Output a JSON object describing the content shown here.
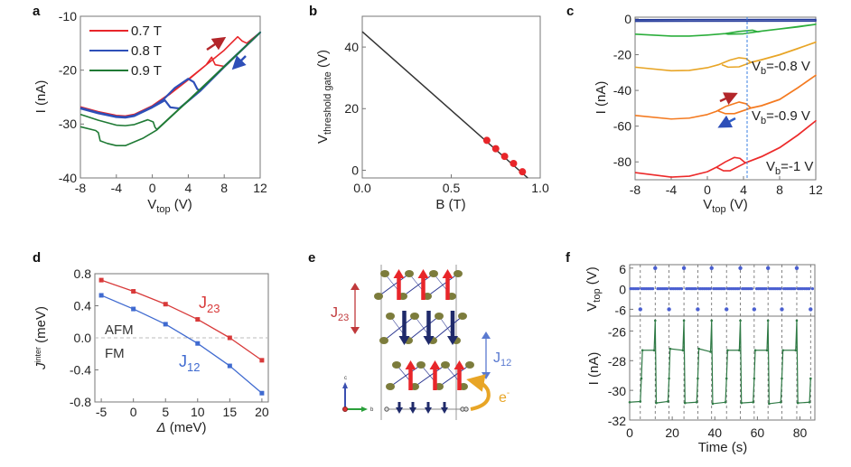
{
  "panel_labels": [
    "a",
    "b",
    "c",
    "d",
    "e",
    "f"
  ],
  "chart_data": [
    {
      "panel": "a",
      "type": "line",
      "xlabel": {
        "main": "V",
        "sub": "top",
        "unit": " (V)"
      },
      "ylabel": "I (nA)",
      "xlim": [
        -8,
        12
      ],
      "ylim": [
        -40,
        -10
      ],
      "xticks": [
        -8,
        -4,
        0,
        4,
        8,
        12
      ],
      "yticks": [
        -40,
        -30,
        -20,
        -10
      ],
      "legend_position": "top-left",
      "series": [
        {
          "name": "0.7 T",
          "color": "#e8262a",
          "points": [
            [
              -8,
              -26.8
            ],
            [
              -6,
              -27.7
            ],
            [
              -4,
              -28.4
            ],
            [
              -3,
              -28.5
            ],
            [
              -2,
              -28.2
            ],
            [
              0,
              -26.6
            ],
            [
              2,
              -24.3
            ],
            [
              4,
              -21.7
            ],
            [
              6,
              -19
            ],
            [
              8,
              -16.3
            ],
            [
              9.5,
              -13.8
            ],
            [
              10,
              -14.6
            ],
            [
              10.5,
              -15
            ],
            [
              12,
              -13
            ],
            [
              10,
              -16.2
            ],
            [
              8,
              -19.3
            ],
            [
              7,
              -19
            ],
            [
              6.6,
              -17.6
            ],
            [
              6,
              -19
            ],
            [
              4,
              -21.8
            ],
            [
              2,
              -24.4
            ],
            [
              0,
              -26.7
            ],
            [
              -2,
              -28.3
            ],
            [
              -3,
              -28.6
            ],
            [
              -4,
              -28.5
            ],
            [
              -6,
              -27.8
            ],
            [
              -8,
              -26.9
            ]
          ]
        },
        {
          "name": "0.8 T",
          "color": "#2e4fb8",
          "points": [
            [
              -8,
              -27
            ],
            [
              -6,
              -27.9
            ],
            [
              -4,
              -28.6
            ],
            [
              -3,
              -28.7
            ],
            [
              -2,
              -28.4
            ],
            [
              0,
              -26.8
            ],
            [
              1.2,
              -25.5
            ],
            [
              2.5,
              -23.3
            ],
            [
              4,
              -21.6
            ],
            [
              4.6,
              -22.2
            ],
            [
              5,
              -23.5
            ],
            [
              5.3,
              -23.8
            ],
            [
              8,
              -19.3
            ],
            [
              12,
              -13
            ],
            [
              8,
              -19.4
            ],
            [
              5.3,
              -23.9
            ],
            [
              3,
              -27.1
            ],
            [
              2,
              -26.9
            ],
            [
              1.4,
              -25.6
            ],
            [
              0,
              -26.9
            ],
            [
              -2,
              -28.5
            ],
            [
              -3,
              -28.8
            ],
            [
              -4,
              -28.7
            ],
            [
              -6,
              -28
            ],
            [
              -8,
              -27.1
            ]
          ]
        },
        {
          "name": "0.9 T",
          "color": "#1f7a35",
          "points": [
            [
              -8,
              -28.2
            ],
            [
              -6,
              -29.3
            ],
            [
              -4,
              -30.2
            ],
            [
              -3,
              -30.3
            ],
            [
              -2,
              -30.1
            ],
            [
              -0.5,
              -29.2
            ],
            [
              0.1,
              -29.6
            ],
            [
              0.3,
              -30.6
            ],
            [
              0.5,
              -31
            ],
            [
              4,
              -25.6
            ],
            [
              8,
              -19.3
            ],
            [
              12,
              -13
            ],
            [
              8,
              -19.4
            ],
            [
              4,
              -25.7
            ],
            [
              0.5,
              -31.1
            ],
            [
              -1,
              -32.6
            ],
            [
              -3,
              -34
            ],
            [
              -4,
              -34
            ],
            [
              -5,
              -33.6
            ],
            [
              -5.8,
              -33.1
            ],
            [
              -6,
              -31.6
            ],
            [
              -6.3,
              -31.2
            ],
            [
              -8,
              -30.5
            ]
          ]
        }
      ],
      "arrows": [
        {
          "direction": "forward",
          "color": "#b3262a"
        },
        {
          "direction": "backward",
          "color": "#2e4fb8"
        }
      ]
    },
    {
      "panel": "b",
      "type": "scatter",
      "xlabel": "B (T)",
      "ylabel": {
        "main": "V",
        "sub": "threshold gate",
        "unit": " (V)"
      },
      "xlim": [
        0,
        1
      ],
      "ylim": [
        -2.5,
        50
      ],
      "xticks": [
        0.0,
        0.5,
        1.0
      ],
      "xtick_labels": [
        "0.0",
        "0.5",
        "1.0"
      ],
      "yticks": [
        0,
        20,
        40
      ],
      "points": [
        [
          0.7,
          9.7
        ],
        [
          0.75,
          7.0
        ],
        [
          0.8,
          4.5
        ],
        [
          0.85,
          2.2
        ],
        [
          0.9,
          -0.5
        ]
      ],
      "point_color": "#e8262a",
      "fit_line": [
        [
          0,
          45
        ],
        [
          0.93,
          -2.5
        ]
      ],
      "fit_color": "#333333"
    },
    {
      "panel": "c",
      "type": "line",
      "xlabel": {
        "main": "V",
        "sub": "top",
        "unit": " (V)"
      },
      "ylabel": "I (nA)",
      "xlim": [
        -8,
        12
      ],
      "ylim": [
        -90,
        1
      ],
      "xticks": [
        -8,
        -4,
        0,
        4,
        8,
        12
      ],
      "yticks": [
        -80,
        -60,
        -40,
        -20,
        0
      ],
      "marker_line": {
        "x": 4.4,
        "color": "#3a7fe0"
      },
      "series": [
        {
          "color": "#243a9a",
          "points": [
            [
              -8,
              -0.4
            ],
            [
              12,
              -0.3
            ],
            [
              12,
              -1.2
            ],
            [
              -8,
              -1.3
            ]
          ]
        },
        {
          "color": "#2cae3c",
          "points": [
            [
              -8,
              -8.5
            ],
            [
              -4,
              -9.6
            ],
            [
              -2,
              -9.6
            ],
            [
              0,
              -9
            ],
            [
              2,
              -8.2
            ],
            [
              3.5,
              -7
            ],
            [
              5,
              -6.3
            ],
            [
              5.6,
              -7.2
            ],
            [
              6,
              -6.8
            ],
            [
              8,
              -5.6
            ],
            [
              10,
              -4.5
            ],
            [
              12,
              -3
            ],
            [
              8,
              -5.6
            ],
            [
              6,
              -6.8
            ],
            [
              4,
              -8.3
            ],
            [
              2.3,
              -8.5
            ],
            [
              2,
              -8.2
            ]
          ]
        },
        {
          "label": {
            "main": "V",
            "sub": "b",
            "rest": "=-0.8 V"
          },
          "color": "#e8a526",
          "points": [
            [
              -8,
              -27
            ],
            [
              -4,
              -29
            ],
            [
              -2,
              -28.8
            ],
            [
              0,
              -27.3
            ],
            [
              1.3,
              -25.5
            ],
            [
              2.5,
              -23
            ],
            [
              3.5,
              -21.7
            ],
            [
              4.3,
              -22.2
            ],
            [
              4.8,
              -24.3
            ],
            [
              6,
              -22.8
            ],
            [
              8,
              -20
            ],
            [
              10,
              -16.5
            ],
            [
              12,
              -13
            ],
            [
              10,
              -16.6
            ],
            [
              8,
              -20.1
            ],
            [
              6,
              -22.9
            ],
            [
              4.8,
              -24.4
            ],
            [
              3.5,
              -26.8
            ],
            [
              2.3,
              -27
            ],
            [
              1.6,
              -25.6
            ]
          ]
        },
        {
          "label": {
            "main": "V",
            "sub": "b",
            "rest": "=-0.9 V"
          },
          "color": "#f47a20",
          "points": [
            [
              -8,
              -54
            ],
            [
              -4,
              -56
            ],
            [
              -2,
              -55.5
            ],
            [
              0,
              -53.5
            ],
            [
              1,
              -51.7
            ],
            [
              2,
              -49
            ],
            [
              3.5,
              -46.5
            ],
            [
              4.3,
              -47.5
            ],
            [
              4.8,
              -49.8
            ],
            [
              6,
              -48.5
            ],
            [
              8,
              -45
            ],
            [
              10,
              -38.5
            ],
            [
              12,
              -31.5
            ],
            [
              10,
              -38.6
            ],
            [
              8,
              -45.1
            ],
            [
              6,
              -48.6
            ],
            [
              4.8,
              -49.9
            ],
            [
              3,
              -53
            ],
            [
              2,
              -53
            ],
            [
              1.2,
              -51.5
            ]
          ]
        },
        {
          "label": {
            "main": "V",
            "sub": "b",
            "rest": "=-1 V"
          },
          "color": "#ec2a2a",
          "points": [
            [
              -8,
              -86
            ],
            [
              -4,
              -88.5
            ],
            [
              -2,
              -88
            ],
            [
              0,
              -85.5
            ],
            [
              1,
              -83
            ],
            [
              2,
              -80
            ],
            [
              3,
              -77.5
            ],
            [
              3.6,
              -78
            ],
            [
              4.2,
              -80.5
            ],
            [
              6,
              -77
            ],
            [
              8,
              -72
            ],
            [
              10,
              -65
            ],
            [
              12,
              -57
            ],
            [
              10,
              -65.1
            ],
            [
              8,
              -72.1
            ],
            [
              6,
              -77.1
            ],
            [
              4.2,
              -80.6
            ],
            [
              2.5,
              -85
            ],
            [
              1.8,
              -85
            ],
            [
              1,
              -83
            ]
          ]
        }
      ],
      "arrows": [
        {
          "direction": "forward",
          "color": "#b3262a"
        },
        {
          "direction": "backward",
          "color": "#2e5fc8"
        }
      ]
    },
    {
      "panel": "d",
      "type": "line",
      "xlabel": {
        "main": "Δ",
        "unit": " (meV)"
      },
      "ylabel": {
        "main": "J",
        "sup": "inter",
        "unit": " (meV)"
      },
      "xlim": [
        -6,
        21
      ],
      "ylim": [
        -0.8,
        0.8
      ],
      "xticks": [
        -5,
        0,
        5,
        10,
        15,
        20
      ],
      "yticks": [
        -0.8,
        -0.4,
        0.0,
        0.4,
        0.8
      ],
      "ytick_labels": [
        "-0.8",
        "-0.4",
        "0.0",
        "0.4",
        "0.8"
      ],
      "categories": [
        -5,
        0,
        5,
        10,
        15,
        20
      ],
      "reference_line": 0,
      "region_labels": {
        "above": "AFM",
        "below": "FM"
      },
      "series": [
        {
          "name": {
            "main": "J",
            "sub": "23"
          },
          "color": "#d83a3a",
          "values": [
            0.72,
            0.58,
            0.42,
            0.23,
            0.0,
            -0.28
          ]
        },
        {
          "name": {
            "main": "J",
            "sub": "12"
          },
          "color": "#3f6ad0",
          "values": [
            0.53,
            0.36,
            0.17,
            -0.07,
            -0.35,
            -0.69
          ]
        }
      ]
    },
    {
      "panel": "f",
      "type": "line",
      "xlabel": "Time (s)",
      "xlim": [
        0,
        87
      ],
      "xticks": [
        0,
        20,
        40,
        60,
        80
      ],
      "top": {
        "ylabel": {
          "main": "V",
          "sub": "top",
          "unit": " (V)"
        },
        "ylim": [
          -8,
          7
        ],
        "yticks": [
          -6,
          0,
          6
        ],
        "color": "#4a5fd0",
        "baseline": 0,
        "pulses": [
          [
            5,
            -6
          ],
          [
            12,
            6
          ],
          [
            18.5,
            -6
          ],
          [
            25.5,
            6
          ],
          [
            32,
            -6
          ],
          [
            38.5,
            6
          ],
          [
            45.5,
            -6
          ],
          [
            52,
            6
          ],
          [
            58.5,
            -6
          ],
          [
            65,
            6
          ],
          [
            71.5,
            -6
          ],
          [
            78.5,
            6
          ],
          [
            85,
            -6
          ]
        ]
      },
      "bottom": {
        "ylabel": "I (nA)",
        "ylim": [
          -32,
          -25
        ],
        "yticks": [
          -32,
          -30,
          -28,
          -26
        ],
        "color": "#2f7a45",
        "points": [
          [
            0,
            -30.8
          ],
          [
            5,
            -30.75
          ],
          [
            5.5,
            -29.2
          ],
          [
            6,
            -27.3
          ],
          [
            11.5,
            -27.3
          ],
          [
            12,
            -25.3
          ],
          [
            12.5,
            -30.85
          ],
          [
            18,
            -30.75
          ],
          [
            18.5,
            -29.2
          ],
          [
            19,
            -27.2
          ],
          [
            25,
            -27.3
          ],
          [
            25.5,
            -25.3
          ],
          [
            26,
            -30.85
          ],
          [
            31.5,
            -30.8
          ],
          [
            32,
            -29.2
          ],
          [
            32.5,
            -27.2
          ],
          [
            38,
            -27.4
          ],
          [
            38.5,
            -25.3
          ],
          [
            39,
            -30.9
          ],
          [
            45,
            -30.8
          ],
          [
            45.5,
            -29.2
          ],
          [
            46,
            -27.3
          ],
          [
            51.5,
            -27.3
          ],
          [
            52,
            -25.3
          ],
          [
            52.5,
            -30.85
          ],
          [
            58,
            -30.8
          ],
          [
            58.5,
            -29.2
          ],
          [
            59,
            -27.3
          ],
          [
            64.5,
            -27.3
          ],
          [
            65,
            -25.3
          ],
          [
            65.5,
            -30.9
          ],
          [
            71,
            -30.8
          ],
          [
            71.5,
            -29.2
          ],
          [
            72,
            -27.3
          ],
          [
            78,
            -27.3
          ],
          [
            78.5,
            -25.3
          ],
          [
            79,
            -30.85
          ],
          [
            84.5,
            -30.8
          ],
          [
            85,
            -29.2
          ]
        ]
      }
    }
  ],
  "diagram_e": {
    "j23": {
      "main": "J",
      "sub": "23"
    },
    "j12": {
      "main": "J",
      "sub": "12"
    },
    "electron": {
      "main": "e",
      "sup": "-"
    },
    "axis_c": "c",
    "axis_b": "b",
    "colors": {
      "spin_up": "#e8262a",
      "spin_down": "#1f2a6a",
      "atom": "#7c7c3c",
      "j23": "#c0393b",
      "j12": "#5a7ad0",
      "electron": "#e8a526"
    }
  }
}
